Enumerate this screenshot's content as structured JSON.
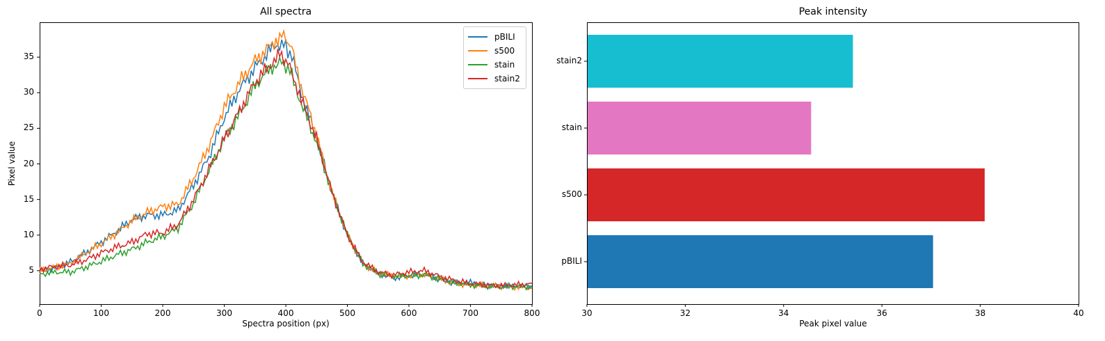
{
  "chart_data": [
    {
      "type": "line",
      "title": "All spectra",
      "xlabel": "Spectra position (px)",
      "ylabel": "Pixel value",
      "xlim": [
        0,
        800
      ],
      "ylim": [
        0.3,
        39.9
      ],
      "xticks": [
        0,
        100,
        200,
        300,
        400,
        500,
        600,
        700,
        800
      ],
      "yticks": [
        5,
        10,
        15,
        20,
        25,
        30,
        35
      ],
      "grid": false,
      "legend_position": "upper right",
      "x": [
        0,
        25,
        50,
        75,
        100,
        125,
        150,
        175,
        200,
        225,
        250,
        275,
        300,
        325,
        350,
        375,
        390,
        400,
        410,
        425,
        450,
        475,
        500,
        525,
        550,
        575,
        600,
        625,
        650,
        675,
        700,
        725,
        750,
        775,
        800
      ],
      "series": [
        {
          "name": "pBILI",
          "color": "#1f77b4",
          "values": [
            5.0,
            5.3,
            6.2,
            7.5,
            9.0,
            10.5,
            12.2,
            12.8,
            12.8,
            13.5,
            17.0,
            21.0,
            26.5,
            30.5,
            33.5,
            36.0,
            37.0,
            36.5,
            35.0,
            30.0,
            23.5,
            16.0,
            10.0,
            6.0,
            4.6,
            4.0,
            4.3,
            4.5,
            3.8,
            3.3,
            3.3,
            3.0,
            2.9,
            2.8,
            2.8
          ]
        },
        {
          "name": "s500",
          "color": "#ff7f0e",
          "values": [
            5.0,
            5.5,
            6.0,
            7.5,
            8.8,
            10.3,
            12.0,
            13.2,
            14.0,
            14.3,
            18.0,
            22.5,
            28.0,
            31.5,
            34.5,
            36.5,
            38.0,
            37.8,
            36.0,
            31.0,
            24.0,
            16.0,
            10.0,
            6.0,
            4.7,
            4.2,
            4.3,
            4.5,
            3.8,
            3.2,
            3.0,
            2.9,
            2.8,
            2.7,
            2.5
          ]
        },
        {
          "name": "stain",
          "color": "#2ca02c",
          "values": [
            4.5,
            4.8,
            4.8,
            5.5,
            6.3,
            7.2,
            8.0,
            9.0,
            9.8,
            11.0,
            14.5,
            19.0,
            23.5,
            27.0,
            31.0,
            33.5,
            34.3,
            33.8,
            32.5,
            28.5,
            23.0,
            16.0,
            10.0,
            6.0,
            4.6,
            4.2,
            4.3,
            4.4,
            3.8,
            3.3,
            3.0,
            2.8,
            2.7,
            2.8,
            2.8
          ]
        },
        {
          "name": "stain2",
          "color": "#d62728",
          "values": [
            5.2,
            5.6,
            5.8,
            6.5,
            7.5,
            8.3,
            9.0,
            10.2,
            10.3,
            11.5,
            15.0,
            19.2,
            23.5,
            27.5,
            31.5,
            34.0,
            35.3,
            34.5,
            33.0,
            29.0,
            23.5,
            16.0,
            10.0,
            6.2,
            4.8,
            4.4,
            4.8,
            5.0,
            4.2,
            3.6,
            3.2,
            3.0,
            2.9,
            3.0,
            3.2
          ]
        }
      ]
    },
    {
      "type": "bar",
      "orientation": "horizontal",
      "title": "Peak intensity",
      "xlabel": "Peak pixel value",
      "ylabel": "",
      "xlim": [
        30,
        40
      ],
      "xticks": [
        30,
        32,
        34,
        36,
        38,
        40
      ],
      "grid": false,
      "categories": [
        "pBILI",
        "s500",
        "stain",
        "stain2"
      ],
      "values": [
        37.04,
        38.09,
        34.56,
        35.41
      ],
      "colors": [
        "#1f77b4",
        "#d62728",
        "#e377c2",
        "#17becf"
      ]
    }
  ]
}
